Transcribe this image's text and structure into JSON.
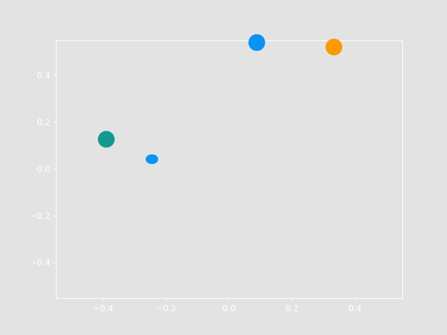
{
  "chart_data": {
    "type": "scatter",
    "title": "",
    "xlabel": "",
    "ylabel": "",
    "xlim": [
      -0.55,
      0.55
    ],
    "ylim": [
      -0.55,
      0.55
    ],
    "grid": false,
    "x_ticks": [
      -0.4,
      -0.2,
      0.0,
      0.2,
      0.4
    ],
    "y_ticks": [
      -0.4,
      -0.2,
      0.0,
      0.2,
      0.4
    ],
    "x_tick_labels": [
      "−0.4",
      "−0.2",
      "0.0",
      "0.2",
      "0.4"
    ],
    "y_tick_labels": [
      "−0.4",
      "−0.2",
      "0.0",
      "0.2",
      "0.4"
    ],
    "points": [
      {
        "x": -0.39,
        "y": 0.128,
        "color": "#129990",
        "size": "large"
      },
      {
        "x": -0.245,
        "y": 0.043,
        "color": "#0a93f5",
        "size": "small"
      },
      {
        "x": 0.088,
        "y": 0.541,
        "color": "#0a93f5",
        "size": "large"
      },
      {
        "x": 0.333,
        "y": 0.522,
        "color": "#fa9a05",
        "size": "large"
      }
    ]
  },
  "colors": {
    "background": "#e3e3e3",
    "axes": "#ffffff"
  }
}
